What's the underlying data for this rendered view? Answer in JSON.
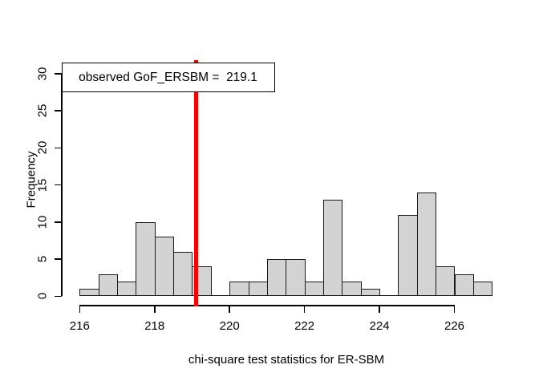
{
  "chart_data": {
    "type": "bar",
    "subtype": "histogram",
    "title": "",
    "xlabel": "chi-square test statistics for ER-SBM",
    "ylabel": "Frequency",
    "bin_start": 216,
    "bin_width": 0.5,
    "categories": [
      "216-216.5",
      "216.5-217",
      "217-217.5",
      "217.5-218",
      "218-218.5",
      "218.5-219",
      "219-219.5",
      "219.5-220",
      "220-220.5",
      "220.5-221",
      "221-221.5",
      "221.5-222",
      "222-222.5",
      "222.5-223",
      "223-223.5",
      "223.5-224",
      "224-224.5",
      "224.5-225",
      "225-225.5",
      "225.5-226",
      "226-226.5",
      "226.5-227"
    ],
    "values": [
      1,
      3,
      2,
      10,
      8,
      6,
      4,
      0,
      2,
      2,
      5,
      5,
      2,
      13,
      2,
      1,
      0,
      11,
      14,
      4,
      3,
      2
    ],
    "x_ticks": [
      216,
      218,
      220,
      222,
      224,
      226
    ],
    "y_ticks": [
      0,
      5,
      10,
      15,
      20,
      25,
      30
    ],
    "xlim": [
      216,
      227
    ],
    "ylim": [
      0,
      30
    ],
    "grid": false,
    "legend_position": "top-left",
    "annotation": {
      "label": "observed GoF_ERSBM =  219.1",
      "line_value": 219.1,
      "line_color": "#ff0000"
    },
    "bar_fill": "#d3d3d3",
    "bar_border": "#1a1a1a",
    "axis_color": "#000000",
    "background": "#ffffff"
  }
}
